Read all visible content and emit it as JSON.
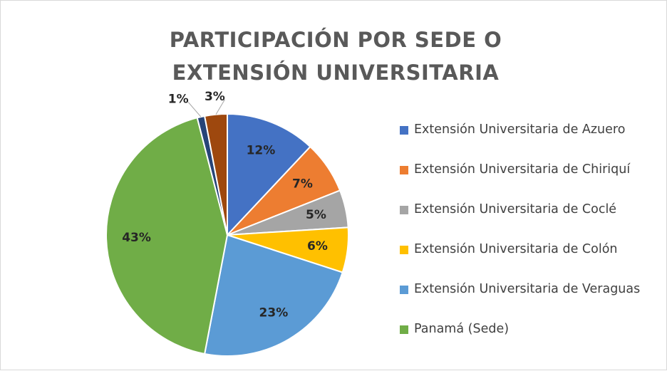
{
  "chart_data": {
    "type": "pie",
    "title": "PARTICIPACIÓN POR SEDE O EXTENSIÓN UNIVERSITARIA",
    "categories": [
      "Extensión Universitaria de Azuero",
      "Extensión Universitaria de Chiriquí",
      "Extensión Universitaria de Coclé",
      "Extensión Universitaria de Colón",
      "Extensión Universitaria de Veraguas",
      "Panamá (Sede)",
      null,
      null
    ],
    "values": [
      12,
      7,
      5,
      6,
      23,
      43,
      1,
      3
    ],
    "value_labels": [
      "12%",
      "7%",
      "5%",
      "6%",
      "23%",
      "43%",
      "1%",
      "3%"
    ],
    "colors": [
      "#4472c4",
      "#ed7d31",
      "#a5a5a5",
      "#ffc000",
      "#5b9bd5",
      "#70ad47",
      "#264478",
      "#9e480e"
    ],
    "legend": "right"
  }
}
